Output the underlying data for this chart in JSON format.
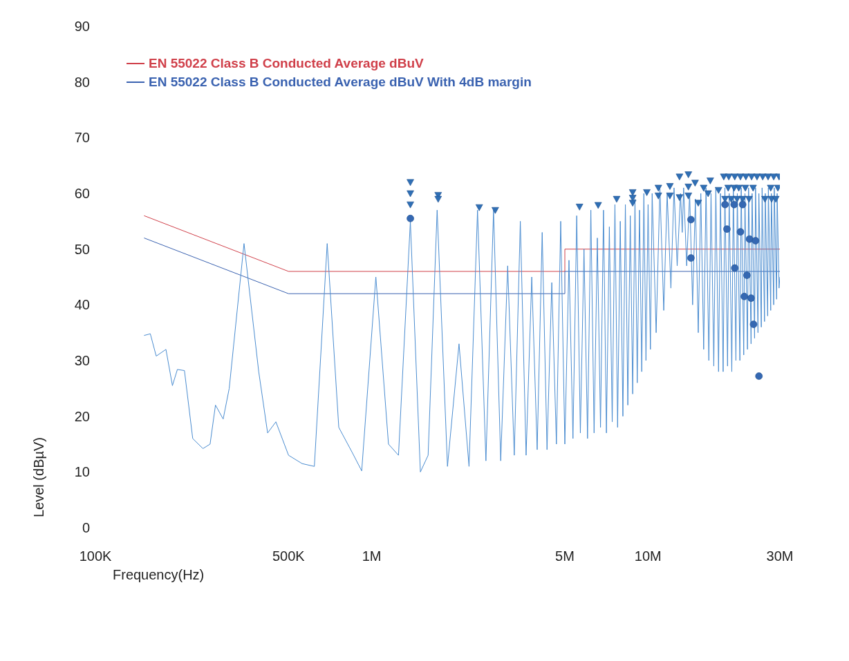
{
  "chart_data": {
    "type": "line",
    "xlabel": "Frequency(Hz)",
    "ylabel": "Level (dBµV)",
    "log": "x",
    "grid": false,
    "legend": "top left",
    "xlim": [
      100000,
      30000000
    ],
    "xticks": [
      {
        "value": 100000,
        "label": "100K"
      },
      {
        "value": 500000,
        "label": "500K"
      },
      {
        "value": 1000000,
        "label": "1M"
      },
      {
        "value": 5000000,
        "label": "5M"
      },
      {
        "value": 10000000,
        "label": "10M"
      },
      {
        "value": 30000000,
        "label": "30M"
      }
    ],
    "ylim": [
      0,
      90
    ],
    "yticks": [
      0,
      10,
      20,
      30,
      40,
      50,
      60,
      70,
      80,
      90
    ],
    "series": [
      {
        "name": "EN 55022 Class B Conducted Average dBuV",
        "marker": "none",
        "line_style": "solid",
        "color": "#d0404a",
        "x": [
          150000,
          500000,
          5000000,
          5000000,
          30000000
        ],
        "values": [
          56,
          46,
          46,
          50,
          50
        ]
      },
      {
        "name": "EN 55022 Class B Conducted Average dBuV With 4dB margin",
        "marker": "none",
        "line_style": "solid",
        "color": "#3a62b0",
        "x": [
          150000,
          500000,
          5000000,
          5000000,
          30000000
        ],
        "values": [
          52,
          42,
          42,
          46,
          46
        ]
      },
      {
        "marker": "none",
        "line_style": "solid",
        "color": "#4a8cd0",
        "x": [
          150000,
          158000,
          166000,
          180000,
          190000,
          198000,
          210000,
          225000,
          245000,
          260000,
          272000,
          290000,
          305000,
          345000,
          390000,
          420000,
          450000,
          500000,
          560000,
          620000,
          690000,
          760000,
          850000,
          920000,
          1035000,
          1150000,
          1250000,
          1380000,
          1500000,
          1600000,
          1725000,
          1880000,
          2070000,
          2250000,
          2415000,
          2590000,
          2760000,
          2930000,
          3105000,
          3280000,
          3450000,
          3620000,
          3795000,
          3970000,
          4140000,
          4310000,
          4485000,
          4660000,
          4830000,
          5000000,
          5175000,
          5350000,
          5520000,
          5690000,
          5865000,
          6040000,
          6210000,
          6380000,
          6555000,
          6730000,
          6900000,
          7070000,
          7245000,
          7420000,
          7590000,
          7760000,
          7935000,
          8110000,
          8280000,
          8450000,
          8625000,
          8800000,
          8970000,
          9140000,
          9315000,
          9490000,
          9660000,
          9830000,
          10005000,
          10200000,
          10350000,
          10700000,
          11040000,
          11400000,
          11730000,
          12100000,
          12420000,
          12750000,
          13110000,
          13300000,
          13455000,
          13800000,
          14145000,
          14500000,
          14835000,
          15200000,
          15525000,
          15900000,
          16215000,
          16600000,
          16905000,
          17300000,
          17595000,
          18000000,
          18285000,
          18700000,
          18975000,
          19400000,
          19665000,
          20100000,
          20355000,
          20800000,
          21045000,
          21500000,
          21735000,
          22200000,
          22425000,
          22900000,
          23115000,
          23600000,
          23805000,
          24300000,
          24495000,
          25000000,
          25185000,
          25700000,
          25875000,
          26400000,
          26565000,
          27100000,
          27255000,
          27800000,
          27945000,
          28500000,
          28635000,
          29200000,
          29325000,
          29800000,
          30000000
        ],
        "values": [
          34.5,
          34.8,
          30.8,
          32,
          25.5,
          28.4,
          28.2,
          16,
          14.2,
          15,
          22,
          19.5,
          25,
          51,
          28,
          17,
          19,
          13,
          11.5,
          11,
          51,
          18,
          13.5,
          10.2,
          45,
          15,
          13,
          55,
          10,
          13,
          57,
          11,
          33,
          11,
          57,
          12,
          57,
          12,
          47,
          13,
          55,
          13,
          45,
          14,
          53,
          14,
          44,
          15,
          55,
          15,
          48,
          16,
          56,
          17,
          50,
          16,
          57,
          17,
          52,
          18,
          57,
          17,
          54,
          19,
          58,
          18,
          55,
          20,
          58,
          22,
          56,
          24,
          59,
          26,
          57,
          28,
          60,
          30,
          58,
          32,
          60,
          35,
          61,
          39,
          60,
          43,
          61,
          47,
          60,
          53,
          61,
          47,
          60,
          40,
          59,
          35,
          60,
          32,
          61,
          30,
          60,
          29,
          61,
          28,
          60,
          28,
          61,
          29,
          60,
          28,
          61,
          30,
          60,
          30,
          61,
          31,
          60,
          32,
          61,
          33,
          60,
          34,
          61,
          35,
          60,
          36,
          61,
          37,
          60,
          38,
          61,
          39,
          60,
          40,
          61,
          41,
          60,
          43,
          45
        ]
      },
      {
        "type": "scatter",
        "marker": "triangle",
        "color": "#2f6fb5",
        "x": [
          1380000,
          1380000,
          1380000,
          1740000,
          1740000,
          2450000,
          2800000,
          5650000,
          6600000,
          7700000,
          8800000,
          8800000,
          8800000,
          9900000,
          10900000,
          10900000,
          12000000,
          12000000,
          13000000,
          13000000,
          14000000,
          14000000,
          14000000,
          14800000,
          15200000,
          15900000,
          16800000,
          16500000,
          18000000,
          18800000,
          19600000,
          20600000,
          21600000,
          22600000,
          23700000,
          24800000,
          26000000,
          27200000,
          28500000,
          29800000,
          19500000,
          20500000,
          21300000,
          22500000,
          24000000,
          27800000,
          29500000,
          19000000,
          20000000,
          21000000,
          22000000,
          23200000,
          26500000,
          28000000,
          29000000
        ],
        "values": [
          62,
          60,
          58,
          59.7,
          59,
          57.5,
          57,
          57.6,
          57.9,
          59,
          60.2,
          59.2,
          58.3,
          60.2,
          61,
          59.6,
          61.3,
          59.6,
          63,
          59.3,
          63.4,
          61.2,
          59.6,
          61.9,
          58.3,
          61,
          62.3,
          60,
          60.6,
          63,
          63,
          63,
          63,
          63,
          63,
          63,
          63,
          63,
          63,
          63,
          61,
          61,
          61,
          61,
          61,
          61,
          61,
          59,
          59,
          59,
          59,
          59,
          59,
          59,
          59
        ]
      },
      {
        "type": "scatter",
        "marker": "circle",
        "color": "#3568b2",
        "x": [
          1380000,
          14300000,
          14300000,
          19300000,
          21600000,
          23300000,
          24500000,
          20600000,
          22800000,
          22300000,
          23600000,
          24100000,
          25200000,
          19000000,
          20500000,
          22000000
        ],
        "values": [
          55.5,
          55.3,
          48.4,
          53.6,
          53.1,
          51.8,
          51.5,
          46.6,
          45.3,
          41.5,
          41.2,
          36.5,
          27.2,
          58,
          58,
          58
        ]
      }
    ]
  }
}
